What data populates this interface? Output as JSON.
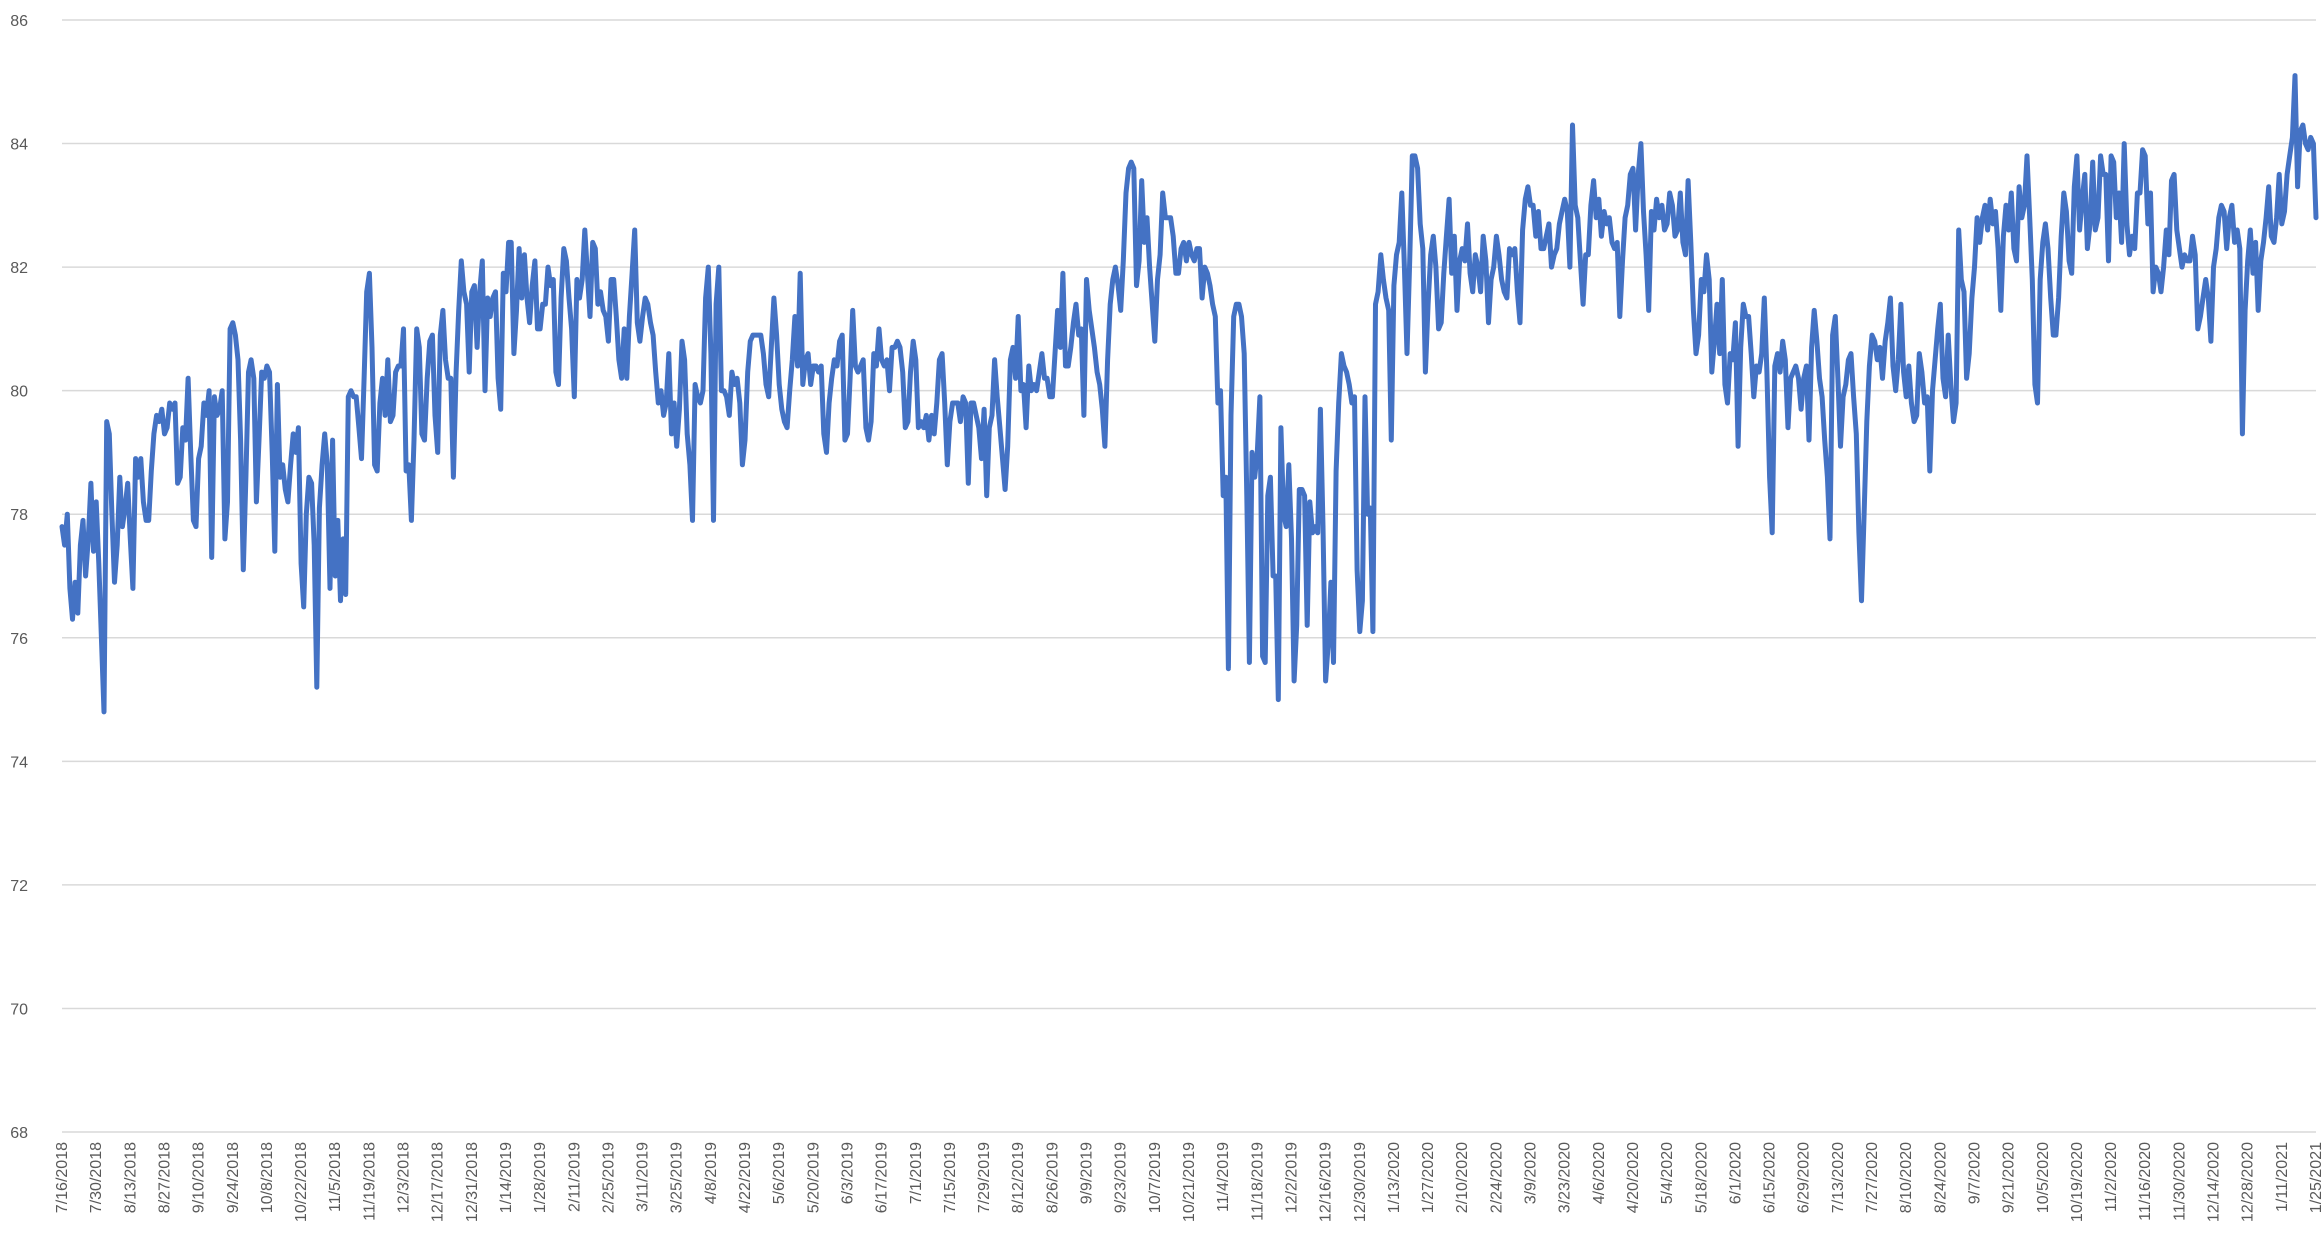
{
  "chart_data": {
    "type": "line",
    "title": "",
    "xlabel": "",
    "ylabel": "",
    "ylim": [
      68,
      86
    ],
    "yticks": [
      68,
      70,
      72,
      74,
      76,
      78,
      80,
      82,
      84,
      86
    ],
    "grid": true,
    "legend": "none",
    "colors": {
      "series": "#4472C4",
      "grid": "#D9D9D9",
      "text": "#595959"
    },
    "xticks": [
      "7/16/2018",
      "7/30/2018",
      "8/13/2018",
      "8/27/2018",
      "9/10/2018",
      "9/24/2018",
      "10/8/2018",
      "10/22/2018",
      "11/5/2018",
      "11/19/2018",
      "12/3/2018",
      "12/17/2018",
      "12/31/2018",
      "1/14/2019",
      "1/28/2019",
      "2/11/2019",
      "2/25/2019",
      "3/11/2019",
      "3/25/2019",
      "4/8/2019",
      "4/22/2019",
      "5/6/2019",
      "5/20/2019",
      "6/3/2019",
      "6/17/2019",
      "7/1/2019",
      "7/15/2019",
      "7/29/2019",
      "8/12/2019",
      "8/26/2019",
      "9/9/2019",
      "9/23/2019",
      "10/7/2019",
      "10/21/2019",
      "11/4/2019",
      "11/18/2019",
      "12/2/2019",
      "12/16/2019",
      "12/30/2019",
      "1/13/2020",
      "1/27/2020",
      "2/10/2020",
      "2/24/2020",
      "3/9/2020",
      "3/23/2020",
      "4/6/2020",
      "4/20/2020",
      "5/4/2020",
      "5/18/2020",
      "6/1/2020",
      "6/15/2020",
      "6/29/2020",
      "7/13/2020",
      "7/27/2020",
      "8/10/2020",
      "8/24/2020",
      "9/7/2020",
      "9/21/2020",
      "10/5/2020",
      "10/19/2020",
      "11/2/2020",
      "11/16/2020",
      "11/30/2020",
      "12/14/2020",
      "12/28/2020",
      "1/11/2021",
      "1/25/2021"
    ],
    "series": [
      {
        "start": "7/16/2018",
        "step_days": 1,
        "values": [
          77.8,
          77.5,
          78.0,
          76.8,
          76.3,
          76.9,
          76.4,
          77.5,
          77.9,
          77.0,
          77.6,
          78.5,
          77.4,
          78.2,
          77.2,
          76.0,
          74.8,
          79.5,
          79.3,
          78.0,
          76.9,
          77.5,
          78.6,
          77.8,
          78.1,
          78.5,
          77.6,
          76.8,
          78.9,
          78.6,
          78.9,
          78.2,
          77.9,
          77.9,
          78.7,
          79.3,
          79.6,
          79.5,
          79.7,
          79.3,
          79.4,
          79.8,
          79.7,
          79.8,
          78.5,
          78.6,
          79.4,
          79.2,
          80.2,
          79.0,
          77.9,
          77.8,
          78.9,
          79.1,
          79.8,
          79.6,
          80.0,
          77.3,
          79.9,
          79.6,
          79.7,
          80.0,
          77.6,
          78.2,
          81.0,
          81.1,
          80.9,
          80.5,
          79.2,
          77.1,
          78.6,
          80.3,
          80.5,
          80.2,
          78.2,
          79.2,
          80.3,
          80.2,
          80.4,
          80.3,
          79.0,
          77.4,
          80.1,
          78.6,
          78.8,
          78.4,
          78.2,
          78.8,
          79.3,
          79.0,
          79.4,
          77.2,
          76.5,
          78.0,
          78.6,
          78.5,
          77.5,
          75.2,
          78.1,
          78.8,
          79.3,
          78.8,
          76.8,
          79.2,
          77.0,
          77.9,
          76.6,
          77.6,
          76.7,
          79.9,
          80.0,
          79.9,
          79.9,
          79.4,
          78.9,
          80.2,
          81.6,
          81.9,
          80.7,
          78.8,
          78.7,
          79.8,
          80.2,
          79.6,
          80.5,
          79.5,
          79.6,
          80.3,
          80.4,
          80.4,
          81.0,
          78.7,
          78.8,
          77.9,
          79.2,
          81.0,
          80.7,
          79.3,
          79.2,
          80.2,
          80.8,
          80.9,
          79.6,
          79.0,
          80.9,
          81.3,
          80.5,
          80.2,
          80.2,
          78.6,
          80.3,
          81.3,
          82.1,
          81.6,
          81.4,
          80.3,
          81.6,
          81.7,
          80.7,
          81.6,
          82.1,
          80.0,
          81.5,
          81.2,
          81.5,
          81.6,
          80.2,
          79.7,
          81.9,
          81.6,
          82.4,
          82.4,
          80.6,
          81.3,
          82.3,
          81.5,
          82.2,
          81.5,
          81.1,
          81.7,
          82.1,
          81.0,
          81.0,
          81.4,
          81.4,
          82.0,
          81.7,
          81.8,
          80.3,
          80.1,
          81.5,
          82.3,
          82.1,
          81.5,
          81.0,
          79.9,
          81.8,
          81.5,
          81.8,
          82.6,
          81.9,
          81.2,
          82.4,
          82.3,
          81.4,
          81.6,
          81.3,
          81.2,
          80.8,
          81.8,
          81.8,
          81.2,
          80.5,
          80.2,
          81.0,
          80.2,
          81.2,
          81.9,
          82.6,
          81.1,
          80.8,
          81.2,
          81.5,
          81.4,
          81.1,
          80.9,
          80.3,
          79.8,
          80.0,
          79.6,
          79.8,
          80.6,
          79.3,
          79.8,
          79.1,
          79.7,
          80.8,
          80.5,
          79.3,
          78.8,
          77.9,
          80.1,
          79.9,
          79.8,
          80.0,
          81.5,
          82.0,
          80.6,
          77.9,
          81.4,
          82.0,
          80.0,
          80.0,
          79.9,
          79.6,
          80.3,
          80.1,
          80.2,
          79.8,
          78.8,
          79.2,
          80.3,
          80.8,
          80.9,
          80.9,
          80.9,
          80.9,
          80.6,
          80.1,
          79.9,
          80.7,
          81.5,
          80.9,
          80.1,
          79.7,
          79.5,
          79.4,
          80.0,
          80.5,
          81.2,
          80.4,
          81.9,
          80.1,
          80.5,
          80.6,
          80.1,
          80.4,
          80.4,
          80.3,
          80.4,
          79.3,
          79.0,
          79.8,
          80.2,
          80.5,
          80.4,
          80.8,
          80.9,
          79.2,
          79.3,
          80.2,
          81.3,
          80.4,
          80.3,
          80.4,
          80.5,
          79.4,
          79.2,
          79.5,
          80.6,
          80.4,
          81.0,
          80.5,
          80.4,
          80.5,
          80.0,
          80.7,
          80.7,
          80.8,
          80.7,
          80.3,
          79.4,
          79.5,
          80.3,
          80.8,
          80.5,
          79.4,
          79.5,
          79.4,
          79.6,
          79.2,
          79.6,
          79.3,
          79.8,
          80.5,
          80.6,
          79.8,
          78.8,
          79.5,
          79.8,
          79.8,
          79.8,
          79.5,
          79.9,
          79.8,
          78.5,
          79.8,
          79.8,
          79.6,
          79.4,
          78.9,
          79.7,
          78.3,
          79.4,
          79.6,
          80.5,
          79.9,
          79.4,
          78.9,
          78.4,
          79.1,
          80.5,
          80.7,
          80.2,
          81.2,
          80.0,
          80.1,
          79.4,
          80.4,
          80.0,
          80.1,
          80.0,
          80.3,
          80.6,
          80.2,
          80.2,
          79.9,
          79.9,
          80.6,
          81.3,
          80.7,
          81.9,
          80.4,
          80.4,
          80.7,
          81.1,
          81.4,
          80.9,
          81.0,
          79.6,
          81.8,
          81.3,
          81.0,
          80.7,
          80.3,
          80.1,
          79.7,
          79.1,
          80.5,
          81.4,
          81.8,
          82.0,
          81.7,
          81.3,
          82.1,
          83.2,
          83.6,
          83.7,
          83.6,
          81.7,
          82.1,
          83.4,
          82.4,
          82.8,
          82.0,
          81.4,
          80.8,
          81.8,
          82.2,
          83.2,
          82.8,
          82.8,
          82.8,
          82.5,
          81.9,
          81.9,
          82.3,
          82.4,
          82.1,
          82.4,
          82.2,
          82.1,
          82.3,
          82.3,
          81.5,
          82.0,
          81.9,
          81.7,
          81.4,
          81.2,
          79.8,
          80.0,
          78.3,
          78.6,
          75.5,
          79.6,
          81.2,
          81.4,
          81.4,
          81.2,
          80.6,
          78.3,
          75.6,
          79.0,
          78.6,
          79.0,
          79.9,
          75.7,
          75.6,
          78.3,
          78.6,
          77.0,
          77.0,
          75.0,
          79.4,
          78.0,
          77.8,
          78.8,
          77.6,
          75.3,
          76.2,
          78.4,
          78.4,
          78.3,
          76.2,
          78.2,
          77.7,
          77.8,
          77.7,
          79.7,
          77.8,
          75.3,
          75.9,
          76.9,
          75.6,
          78.7,
          79.8,
          80.6,
          80.4,
          80.3,
          80.1,
          79.8,
          79.9,
          77.1,
          76.1,
          76.6,
          79.9,
          78.0,
          78.1,
          76.1,
          81.4,
          81.6,
          82.2,
          81.8,
          81.5,
          81.3,
          79.2,
          81.7,
          82.2,
          82.4,
          83.2,
          82.0,
          80.6,
          82.1,
          83.8,
          83.8,
          83.6,
          82.7,
          82.3,
          80.3,
          81.4,
          82.2,
          82.5,
          82.0,
          81.0,
          81.1,
          81.9,
          82.5,
          83.1,
          81.9,
          82.5,
          81.3,
          82.1,
          82.3,
          82.1,
          82.7,
          81.9,
          81.6,
          82.2,
          82.0,
          81.6,
          82.5,
          82.1,
          81.1,
          81.8,
          82.0,
          82.5,
          82.2,
          81.8,
          81.6,
          81.5,
          82.3,
          82.2,
          82.3,
          81.6,
          81.1,
          82.6,
          83.1,
          83.3,
          83.0,
          83.0,
          82.5,
          82.9,
          82.3,
          82.3,
          82.5,
          82.7,
          82.0,
          82.2,
          82.3,
          82.7,
          82.9,
          83.1,
          82.9,
          82.0,
          84.3,
          83.0,
          82.8,
          82.1,
          81.4,
          82.2,
          82.2,
          83.0,
          83.4,
          82.8,
          83.1,
          82.5,
          82.9,
          82.7,
          82.8,
          82.4,
          82.3,
          82.4,
          81.2,
          82.1,
          82.8,
          83.0,
          83.5,
          83.6,
          82.6,
          83.5,
          84.0,
          82.9,
          82.2,
          81.3,
          82.9,
          82.6,
          83.1,
          82.8,
          83.0,
          82.6,
          82.7,
          83.2,
          83.0,
          82.5,
          82.6,
          83.2,
          82.4,
          82.2,
          83.4,
          82.4,
          81.3,
          80.6,
          80.9,
          81.8,
          81.6,
          82.2,
          81.8,
          80.3,
          80.8,
          81.4,
          80.6,
          81.8,
          80.1,
          79.8,
          80.6,
          80.5,
          81.1,
          79.1,
          80.7,
          81.4,
          81.2,
          81.2,
          80.6,
          79.9,
          80.4,
          80.3,
          80.6,
          81.5,
          80.3,
          78.6,
          77.7,
          80.4,
          80.6,
          80.3,
          80.8,
          80.5,
          79.4,
          80.2,
          80.3,
          80.4,
          80.2,
          79.7,
          80.2,
          80.4,
          79.2,
          80.7,
          81.3,
          80.8,
          80.2,
          79.9,
          79.2,
          78.6,
          77.6,
          80.9,
          81.2,
          80.2,
          79.1,
          79.9,
          80.1,
          80.5,
          80.6,
          79.9,
          79.3,
          77.7,
          76.6,
          78.0,
          79.5,
          80.4,
          80.9,
          80.8,
          80.5,
          80.7,
          80.2,
          80.8,
          81.1,
          81.5,
          80.4,
          80.0,
          80.5,
          81.4,
          80.3,
          79.9,
          80.4,
          79.8,
          79.5,
          79.6,
          80.6,
          80.3,
          79.8,
          79.9,
          78.7,
          80.0,
          80.5,
          81.0,
          81.4,
          80.2,
          79.9,
          80.9,
          80.1,
          79.5,
          79.8,
          82.6,
          81.8,
          81.6,
          80.2,
          80.6,
          81.5,
          82.0,
          82.8,
          82.4,
          82.8,
          83.0,
          82.6,
          83.1,
          82.7,
          82.9,
          82.3,
          81.3,
          82.5,
          83.0,
          82.6,
          83.2,
          82.3,
          82.1,
          83.3,
          82.8,
          83.0,
          83.8,
          82.8,
          81.8,
          80.1,
          79.8,
          81.8,
          82.4,
          82.7,
          82.3,
          81.5,
          80.9,
          80.9,
          81.5,
          82.5,
          83.2,
          82.9,
          82.1,
          81.9,
          83.3,
          83.8,
          82.6,
          83.1,
          83.5,
          82.3,
          82.7,
          83.7,
          82.6,
          82.8,
          83.8,
          83.5,
          83.5,
          82.1,
          83.8,
          83.7,
          82.8,
          83.2,
          82.4,
          84.0,
          82.7,
          82.2,
          82.5,
          82.3,
          83.2,
          83.2,
          83.9,
          83.8,
          82.7,
          83.2,
          81.6,
          82.0,
          81.9,
          81.6,
          82.0,
          82.6,
          82.2,
          83.4,
          83.5,
          82.6,
          82.3,
          82.0,
          82.2,
          82.1,
          82.1,
          82.5,
          82.2,
          81.0,
          81.2,
          81.5,
          81.8,
          81.5,
          80.8,
          82.0,
          82.3,
          82.8,
          83.0,
          82.9,
          82.3,
          82.8,
          83.0,
          82.4,
          82.6,
          82.3,
          79.3,
          81.3,
          82.1,
          82.6,
          81.9,
          82.4,
          81.3,
          82.1,
          82.4,
          82.8,
          83.3,
          82.5,
          82.4,
          82.8,
          83.5,
          82.7,
          82.9,
          83.5,
          83.8,
          84.1,
          85.1,
          83.3,
          84.2,
          84.3,
          84.0,
          83.9,
          84.1,
          84.0,
          82.8
        ]
      }
    ]
  }
}
